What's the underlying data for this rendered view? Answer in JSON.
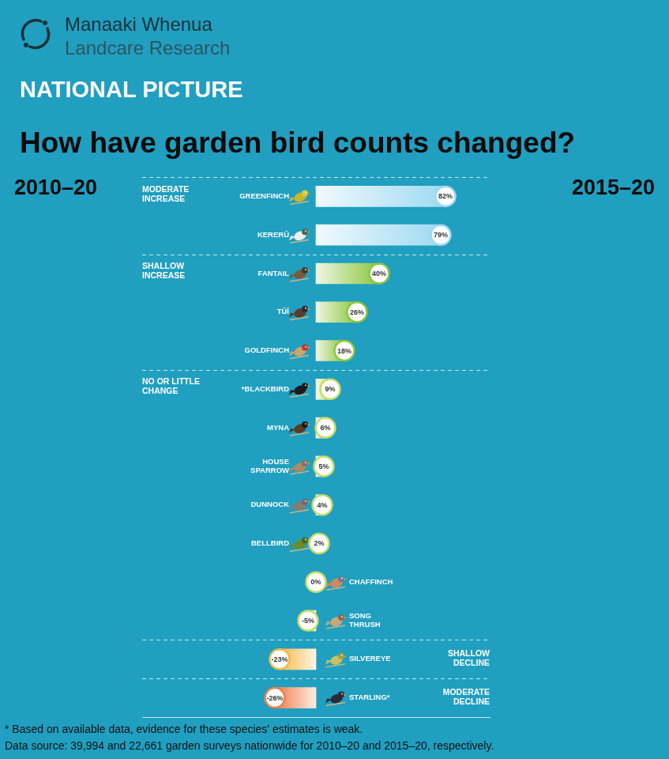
{
  "header": {
    "logo_line1": "Manaaki Whenua",
    "logo_line2": "Landcare Research",
    "section": "NATIONAL PICTURE",
    "period_left": "2010–20",
    "period_right": "2015–20"
  },
  "chart_data": {
    "type": "bar",
    "orientation": "horizontal",
    "title": "How have garden bird counts changed?",
    "categories": [
      "GREENFINCH",
      "KERERŪ",
      "FANTAIL",
      "TŪĪ",
      "GOLDFINCH",
      "*BLACKBIRD",
      "MYNA",
      "HOUSE SPARROW",
      "DUNNOCK",
      "BELLBIRD",
      "CHAFFINCH",
      "SONG THRUSH",
      "SILVEREYE",
      "STARLING*"
    ],
    "values": [
      82,
      79,
      40,
      26,
      18,
      9,
      6,
      5,
      4,
      2,
      0,
      -5,
      -23,
      -26
    ],
    "value_labels": [
      "82%",
      "79%",
      "40%",
      "26%",
      "18%",
      "9%",
      "6%",
      "5%",
      "4%",
      "2%",
      "0%",
      "-5%",
      "-23%",
      "-26%"
    ],
    "colors": [
      "#9fdaf2",
      "#9fdaf2",
      "#8cc63f",
      "#8cc63f",
      "#8cc63f",
      "#c5dc6a",
      "#c5dc6a",
      "#c5dc6a",
      "#c5dc6a",
      "#c5dc6a",
      "#c5dc6a",
      "#c5dc6a",
      "#f5b94a",
      "#ef7d48"
    ],
    "groups": [
      {
        "name": "MODERATE INCREASE",
        "categories": [
          "GREENFINCH",
          "KERERŪ"
        ]
      },
      {
        "name": "SHALLOW INCREASE",
        "categories": [
          "FANTAIL",
          "TŪĪ",
          "GOLDFINCH"
        ]
      },
      {
        "name": "NO OR LITTLE CHANGE",
        "categories": [
          "*BLACKBIRD",
          "MYNA",
          "HOUSE SPARROW",
          "DUNNOCK",
          "BELLBIRD",
          "CHAFFINCH",
          "SONG THRUSH"
        ]
      },
      {
        "name": "SHALLOW DECLINE",
        "categories": [
          "SILVEREYE"
        ]
      },
      {
        "name": "MODERATE DECLINE",
        "categories": [
          "STARLING*"
        ]
      }
    ],
    "xlim": [
      -110,
      110
    ],
    "data_labels": true,
    "tick_labels": false,
    "grid": false
  },
  "footnotes": [
    "* Based on available data, evidence for these species' estimates is weak.",
    "Data source: 39,994 and 22,661 garden surveys nationwide for 2010–20 and 2015–20, respectively."
  ]
}
